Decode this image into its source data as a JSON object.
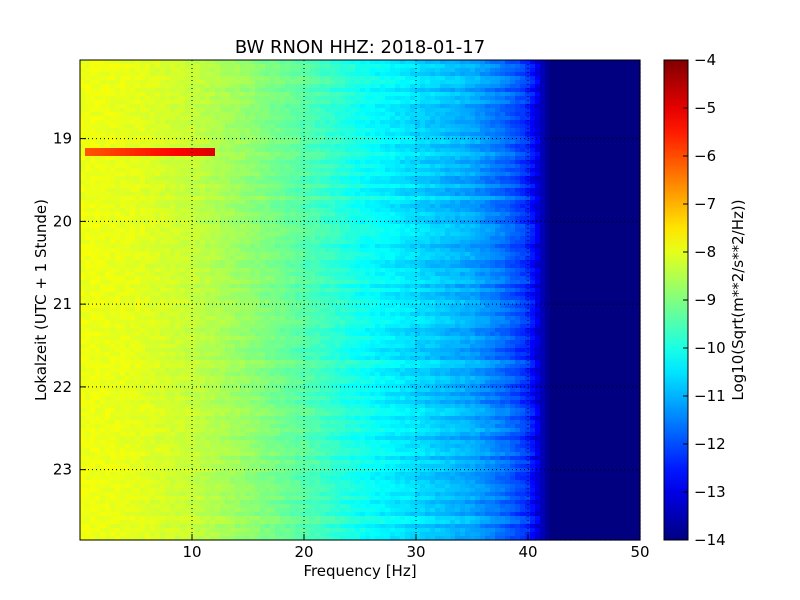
{
  "chart_data": {
    "type": "heatmap",
    "title": "BW RNON HHZ: 2018-01-17",
    "xlabel": "Frequency [Hz]",
    "ylabel": "Lokalzeit (UTC + 1 Stunde)",
    "colorbar_label": "Log10(Sqrt(m**2/s**2/Hz))",
    "colormap": "jet",
    "x_range": [
      0,
      50
    ],
    "y_range": [
      18.05,
      23.85
    ],
    "y_inverted": true,
    "x_ticks": [
      10,
      20,
      30,
      40,
      50
    ],
    "x_tick_labels": [
      "10",
      "20",
      "30",
      "40",
      "50"
    ],
    "y_ticks": [
      19,
      20,
      21,
      22,
      23
    ],
    "y_tick_labels": [
      "19",
      "20",
      "21",
      "22",
      "23"
    ],
    "color_range": [
      -14,
      -4
    ],
    "cbar_ticks": [
      -4,
      -5,
      -6,
      -7,
      -8,
      -9,
      -10,
      -11,
      -12,
      -13,
      -14
    ],
    "cbar_tick_labels": [
      "−4",
      "−5",
      "−6",
      "−7",
      "−8",
      "−9",
      "−10",
      "−11",
      "−12",
      "−13",
      "−14"
    ],
    "grid": true,
    "frequency_profile": [
      {
        "f": 0,
        "v": -7.9
      },
      {
        "f": 5,
        "v": -8.0
      },
      {
        "f": 10,
        "v": -8.3
      },
      {
        "f": 15,
        "v": -8.8
      },
      {
        "f": 20,
        "v": -9.4
      },
      {
        "f": 25,
        "v": -10.1
      },
      {
        "f": 30,
        "v": -10.6
      },
      {
        "f": 35,
        "v": -11.1
      },
      {
        "f": 38,
        "v": -11.7
      },
      {
        "f": 40,
        "v": -12.3
      },
      {
        "f": 41,
        "v": -13.2
      },
      {
        "f": 42,
        "v": -14.0
      },
      {
        "f": 50,
        "v": -14.0
      }
    ],
    "annotations": [
      {
        "f_range": [
          0.5,
          12
        ],
        "time": 19.17,
        "value": -6.1
      }
    ]
  }
}
